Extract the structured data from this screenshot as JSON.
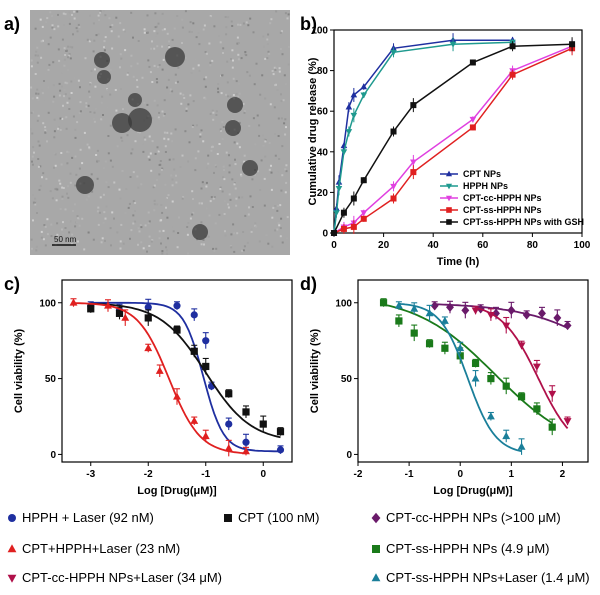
{
  "panels": {
    "a": {
      "letter": "a)",
      "scale_label": "50 nm"
    },
    "b": {
      "letter": "b)"
    },
    "c": {
      "letter": "c)"
    },
    "d": {
      "letter": "d)"
    }
  },
  "colors": {
    "blue": "#1f2fa0",
    "cyan": "#1f9a8f",
    "magenta": "#e040e0",
    "red": "#e02020",
    "black": "#111111",
    "darkred": "#b0104a",
    "purple": "#6a1a6a",
    "green": "#1a7a1a",
    "teal": "#1a7f9a"
  },
  "bottom_legend": [
    {
      "label": "HPPH + Laser (92 nM)",
      "marker": "circle",
      "color": "#1f2fa0"
    },
    {
      "label": "CPT (100 nM)",
      "marker": "square",
      "color": "#111111"
    },
    {
      "label": "CPT-cc-HPPH NPs (>100 μM)",
      "marker": "diamond",
      "color": "#6a1a6a"
    },
    {
      "label": "CPT+HPPH+Laser (23 nM)",
      "marker": "triangle",
      "color": "#e02020"
    },
    {
      "label": "CPT-ss-HPPH NPs (4.9 μM)",
      "marker": "square",
      "color": "#1a7a1a"
    },
    {
      "label": "CPT-cc-HPPH NPs+Laser (34 μM)",
      "marker": "triangle-down",
      "color": "#b0104a"
    },
    {
      "label": "CPT-ss-HPPH NPs+Laser (1.4 μM)",
      "marker": "triangle",
      "color": "#1a7f9a"
    }
  ],
  "chart_data": [
    {
      "panel": "b",
      "type": "line",
      "xlabel": "Time (h)",
      "ylabel": "Cumulative drug release (%)",
      "xlim": [
        0,
        100
      ],
      "ylim": [
        0,
        100
      ],
      "xticks": [
        0,
        20,
        40,
        60,
        80,
        100
      ],
      "yticks": [
        0,
        20,
        40,
        60,
        80,
        100
      ],
      "legend_position": "bottom-right",
      "series": [
        {
          "name": "CPT NPs",
          "color": "#1f2fa0",
          "marker": "triangle",
          "x": [
            0,
            1,
            2,
            4,
            6,
            8,
            12,
            24,
            48,
            72
          ],
          "y": [
            0,
            12,
            25,
            43,
            62,
            68,
            72,
            91,
            95,
            95
          ]
        },
        {
          "name": "HPPH NPs",
          "color": "#1f9a8f",
          "marker": "triangle-down",
          "x": [
            0,
            1,
            2,
            4,
            6,
            8,
            12,
            24,
            48,
            72
          ],
          "y": [
            0,
            10,
            22,
            40,
            50,
            58,
            68,
            89,
            93,
            94
          ]
        },
        {
          "name": "CPT-cc-HPPH NPs",
          "color": "#e040e0",
          "marker": "triangle-down",
          "x": [
            0,
            4,
            8,
            12,
            24,
            32,
            56,
            72,
            96
          ],
          "y": [
            0,
            3,
            5,
            10,
            23,
            35,
            56,
            80,
            92
          ]
        },
        {
          "name": "CPT-ss-HPPH NPs",
          "color": "#e02020",
          "marker": "square",
          "x": [
            0,
            4,
            8,
            12,
            24,
            32,
            56,
            72,
            96
          ],
          "y": [
            0,
            2,
            3,
            7,
            17,
            30,
            52,
            78,
            91
          ]
        },
        {
          "name": "CPT-ss-HPPH NPs with GSH",
          "color": "#111111",
          "marker": "square",
          "x": [
            0,
            4,
            8,
            12,
            24,
            32,
            56,
            72,
            96
          ],
          "y": [
            0,
            10,
            17,
            26,
            50,
            63,
            84,
            92,
            93
          ]
        }
      ]
    },
    {
      "panel": "c",
      "type": "scatter",
      "xlabel": "Log [Drug(μM)]",
      "ylabel": "Cell viability (%)",
      "xlim": [
        -3.5,
        0.5
      ],
      "ylim": [
        -5,
        115
      ],
      "xticks": [
        -3,
        -2,
        -1,
        0
      ],
      "yticks": [
        0,
        50,
        100
      ],
      "series": [
        {
          "name": "HPPH + Laser (92 nM)",
          "color": "#1f2fa0",
          "marker": "circle",
          "x": [
            -3,
            -2.5,
            -2,
            -1.5,
            -1.2,
            -1.0,
            -0.9,
            -0.6,
            -0.3,
            0.3
          ],
          "y": [
            98,
            95,
            97,
            98,
            92,
            75,
            45,
            20,
            8,
            3
          ],
          "fit_logIC50": -1.04,
          "fit_hill": 2.5,
          "fit_top": 100,
          "fit_bottom": 2
        },
        {
          "name": "CPT (100 nM)",
          "color": "#111111",
          "marker": "square",
          "x": [
            -3,
            -2.5,
            -2,
            -1.5,
            -1.2,
            -1.0,
            -0.6,
            -0.3,
            0,
            0.3
          ],
          "y": [
            96,
            93,
            90,
            82,
            68,
            58,
            40,
            28,
            20,
            15
          ],
          "fit_logIC50": -1.0,
          "fit_hill": 1.1,
          "fit_top": 100,
          "fit_bottom": 8
        },
        {
          "name": "CPT+HPPH+Laser (23 nM)",
          "color": "#e02020",
          "marker": "triangle",
          "x": [
            -3.3,
            -2.7,
            -2.4,
            -2,
            -1.8,
            -1.5,
            -1.2,
            -1.0,
            -0.6,
            -0.3
          ],
          "y": [
            100,
            98,
            90,
            70,
            55,
            38,
            22,
            12,
            4,
            2
          ],
          "fit_logIC50": -1.64,
          "fit_hill": 1.6,
          "fit_top": 100,
          "fit_bottom": 0
        }
      ]
    },
    {
      "panel": "d",
      "type": "scatter",
      "xlabel": "Log [Drug(μM)]",
      "ylabel": "Cell viability (%)",
      "xlim": [
        -2,
        2.5
      ],
      "ylim": [
        -5,
        115
      ],
      "xticks": [
        -2,
        -1,
        0,
        1,
        2
      ],
      "yticks": [
        0,
        50,
        100
      ],
      "series": [
        {
          "name": "CPT-cc-HPPH NPs (>100 μM)",
          "color": "#6a1a6a",
          "marker": "diamond",
          "x": [
            -0.5,
            -0.2,
            0.1,
            0.4,
            0.7,
            1.0,
            1.3,
            1.6,
            1.9,
            2.1
          ],
          "y": [
            98,
            97,
            95,
            96,
            93,
            95,
            92,
            93,
            90,
            85
          ],
          "fit_logIC50": 3.5,
          "fit_hill": 0.5,
          "fit_top": 100,
          "fit_bottom": 0
        },
        {
          "name": "CPT-ss-HPPH NPs (4.9 μM)",
          "color": "#1a7a1a",
          "marker": "square",
          "x": [
            -1.5,
            -1.2,
            -0.9,
            -0.6,
            -0.3,
            0,
            0.3,
            0.6,
            0.9,
            1.2,
            1.5,
            1.8
          ],
          "y": [
            100,
            88,
            80,
            73,
            70,
            65,
            60,
            50,
            45,
            38,
            30,
            18
          ],
          "fit_logIC50": 0.69,
          "fit_hill": 0.55,
          "fit_top": 105,
          "fit_bottom": 0
        },
        {
          "name": "CPT-ss-HPPH NPs+Laser (1.4 μM)",
          "color": "#1a7f9a",
          "marker": "triangle",
          "x": [
            -1.2,
            -0.9,
            -0.6,
            -0.3,
            0,
            0.3,
            0.6,
            0.9,
            1.2
          ],
          "y": [
            98,
            96,
            93,
            88,
            70,
            50,
            25,
            12,
            5
          ],
          "fit_logIC50": 0.15,
          "fit_hill": 1.6,
          "fit_top": 100,
          "fit_bottom": 0
        },
        {
          "name": "CPT-cc-HPPH NPs+Laser (34 μM)",
          "color": "#b0104a",
          "marker": "triangle-down",
          "x": [
            0.3,
            0.6,
            0.9,
            1.2,
            1.5,
            1.8,
            2.1
          ],
          "y": [
            95,
            92,
            85,
            72,
            58,
            40,
            22
          ],
          "fit_logIC50": 1.53,
          "fit_hill": 1.2,
          "fit_top": 100,
          "fit_bottom": 0
        }
      ]
    }
  ]
}
